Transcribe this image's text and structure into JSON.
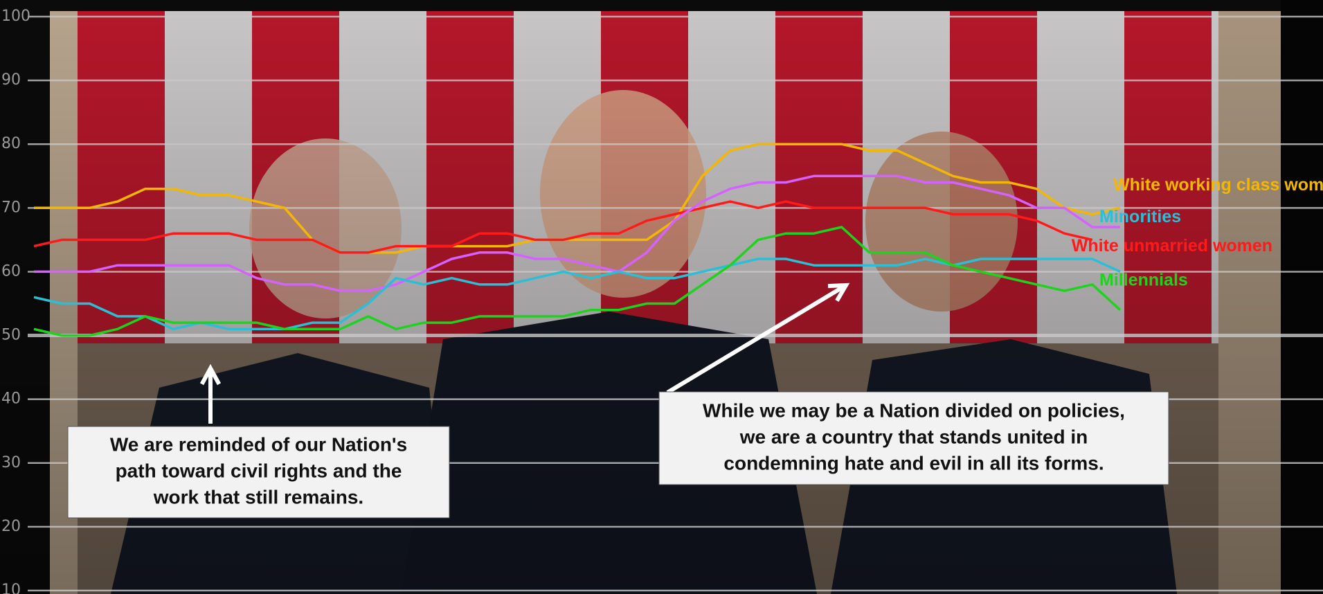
{
  "chart_data": {
    "type": "line",
    "ylim": [
      10,
      100
    ],
    "yticks": [
      10,
      20,
      30,
      40,
      50,
      60,
      70,
      80,
      90,
      100
    ],
    "grid": true,
    "series": [
      {
        "name": "White working class women",
        "color": "#f2b705",
        "values": [
          70,
          70,
          70,
          71,
          73,
          73,
          72,
          72,
          71,
          70,
          65,
          63,
          63,
          63,
          64,
          64,
          64,
          64,
          65,
          65,
          65,
          65,
          65,
          68,
          75,
          79,
          80,
          80,
          80,
          80,
          79,
          79,
          77,
          75,
          74,
          74,
          73,
          70,
          69,
          70
        ]
      },
      {
        "name": "White unmarried women",
        "color": "#ff1a1a",
        "values": [
          64,
          65,
          65,
          65,
          65,
          66,
          66,
          66,
          65,
          65,
          65,
          63,
          63,
          64,
          64,
          64,
          66,
          66,
          65,
          65,
          66,
          66,
          68,
          69,
          70,
          71,
          70,
          71,
          70,
          70,
          70,
          70,
          70,
          69,
          69,
          69,
          68,
          66,
          65,
          null
        ]
      },
      {
        "color": "#d462ff",
        "values": [
          60,
          60,
          60,
          61,
          61,
          61,
          61,
          61,
          59,
          58,
          58,
          57,
          57,
          58,
          60,
          62,
          63,
          63,
          62,
          62,
          61,
          60,
          63,
          68,
          71,
          73,
          74,
          74,
          75,
          75,
          75,
          75,
          74,
          74,
          73,
          72,
          70,
          70,
          67,
          67
        ]
      },
      {
        "name": "Minorities",
        "color": "#2bbfd6",
        "values": [
          56,
          55,
          55,
          53,
          53,
          51,
          52,
          51,
          51,
          51,
          52,
          52,
          55,
          59,
          58,
          59,
          58,
          58,
          59,
          60,
          59,
          60,
          59,
          59,
          60,
          61,
          62,
          62,
          61,
          61,
          61,
          61,
          62,
          61,
          62,
          62,
          62,
          62,
          62,
          60
        ]
      },
      {
        "name": "Millennials",
        "color": "#1ed31e",
        "values": [
          51,
          50,
          50,
          51,
          53,
          52,
          52,
          52,
          52,
          51,
          51,
          51,
          53,
          51,
          52,
          52,
          53,
          53,
          53,
          53,
          54,
          54,
          55,
          55,
          58,
          61,
          65,
          66,
          66,
          67,
          63,
          63,
          63,
          61,
          60,
          59,
          58,
          57,
          58,
          54
        ]
      }
    ],
    "annotations": [
      {
        "lines": [
          "We are reminded of our Nation's",
          "path toward civil rights and the",
          "work that still remains."
        ]
      },
      {
        "lines": [
          "While we may be a Nation divided on policies,",
          "we are a country that stands united in",
          "condemning hate and evil in all its forms."
        ]
      }
    ]
  }
}
